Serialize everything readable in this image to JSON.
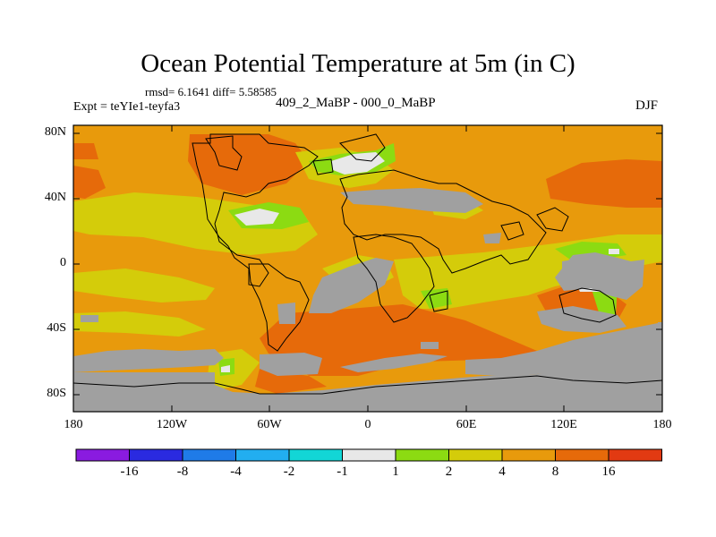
{
  "title": "Ocean Potential Temperature at 5m (in C)",
  "stats": "rmsd= 6.1641 diff= 5.58585",
  "expt": "Expt = teYIe1-teyfa3",
  "subtitle": "409_2_MaBP - 000_0_MaBP",
  "season": "DJF",
  "colors": {
    "land": "#a0a0a0",
    "c_-16": "#8a1be0",
    "c_-8": "#2a2ae0",
    "c_-4": "#1f7be8",
    "c_-2": "#22aef0",
    "c_-1": "#12d6d6",
    "c_1": "#e8e8e8",
    "c_2": "#8cdb12",
    "c_4": "#d4cc0a",
    "c_8": "#e89a0c",
    "c_16": "#e66a0a",
    "c_max": "#e23a12"
  },
  "axes": {
    "y_labels": [
      "80N",
      "40N",
      "0",
      "40S",
      "80S"
    ],
    "x_labels": [
      "180",
      "120W",
      "60W",
      "0",
      "60E",
      "120E",
      "180"
    ]
  },
  "colorbar": {
    "labels": [
      "-16",
      "-8",
      "-4",
      "-2",
      "-1",
      "1",
      "2",
      "4",
      "8",
      "16"
    ]
  }
}
